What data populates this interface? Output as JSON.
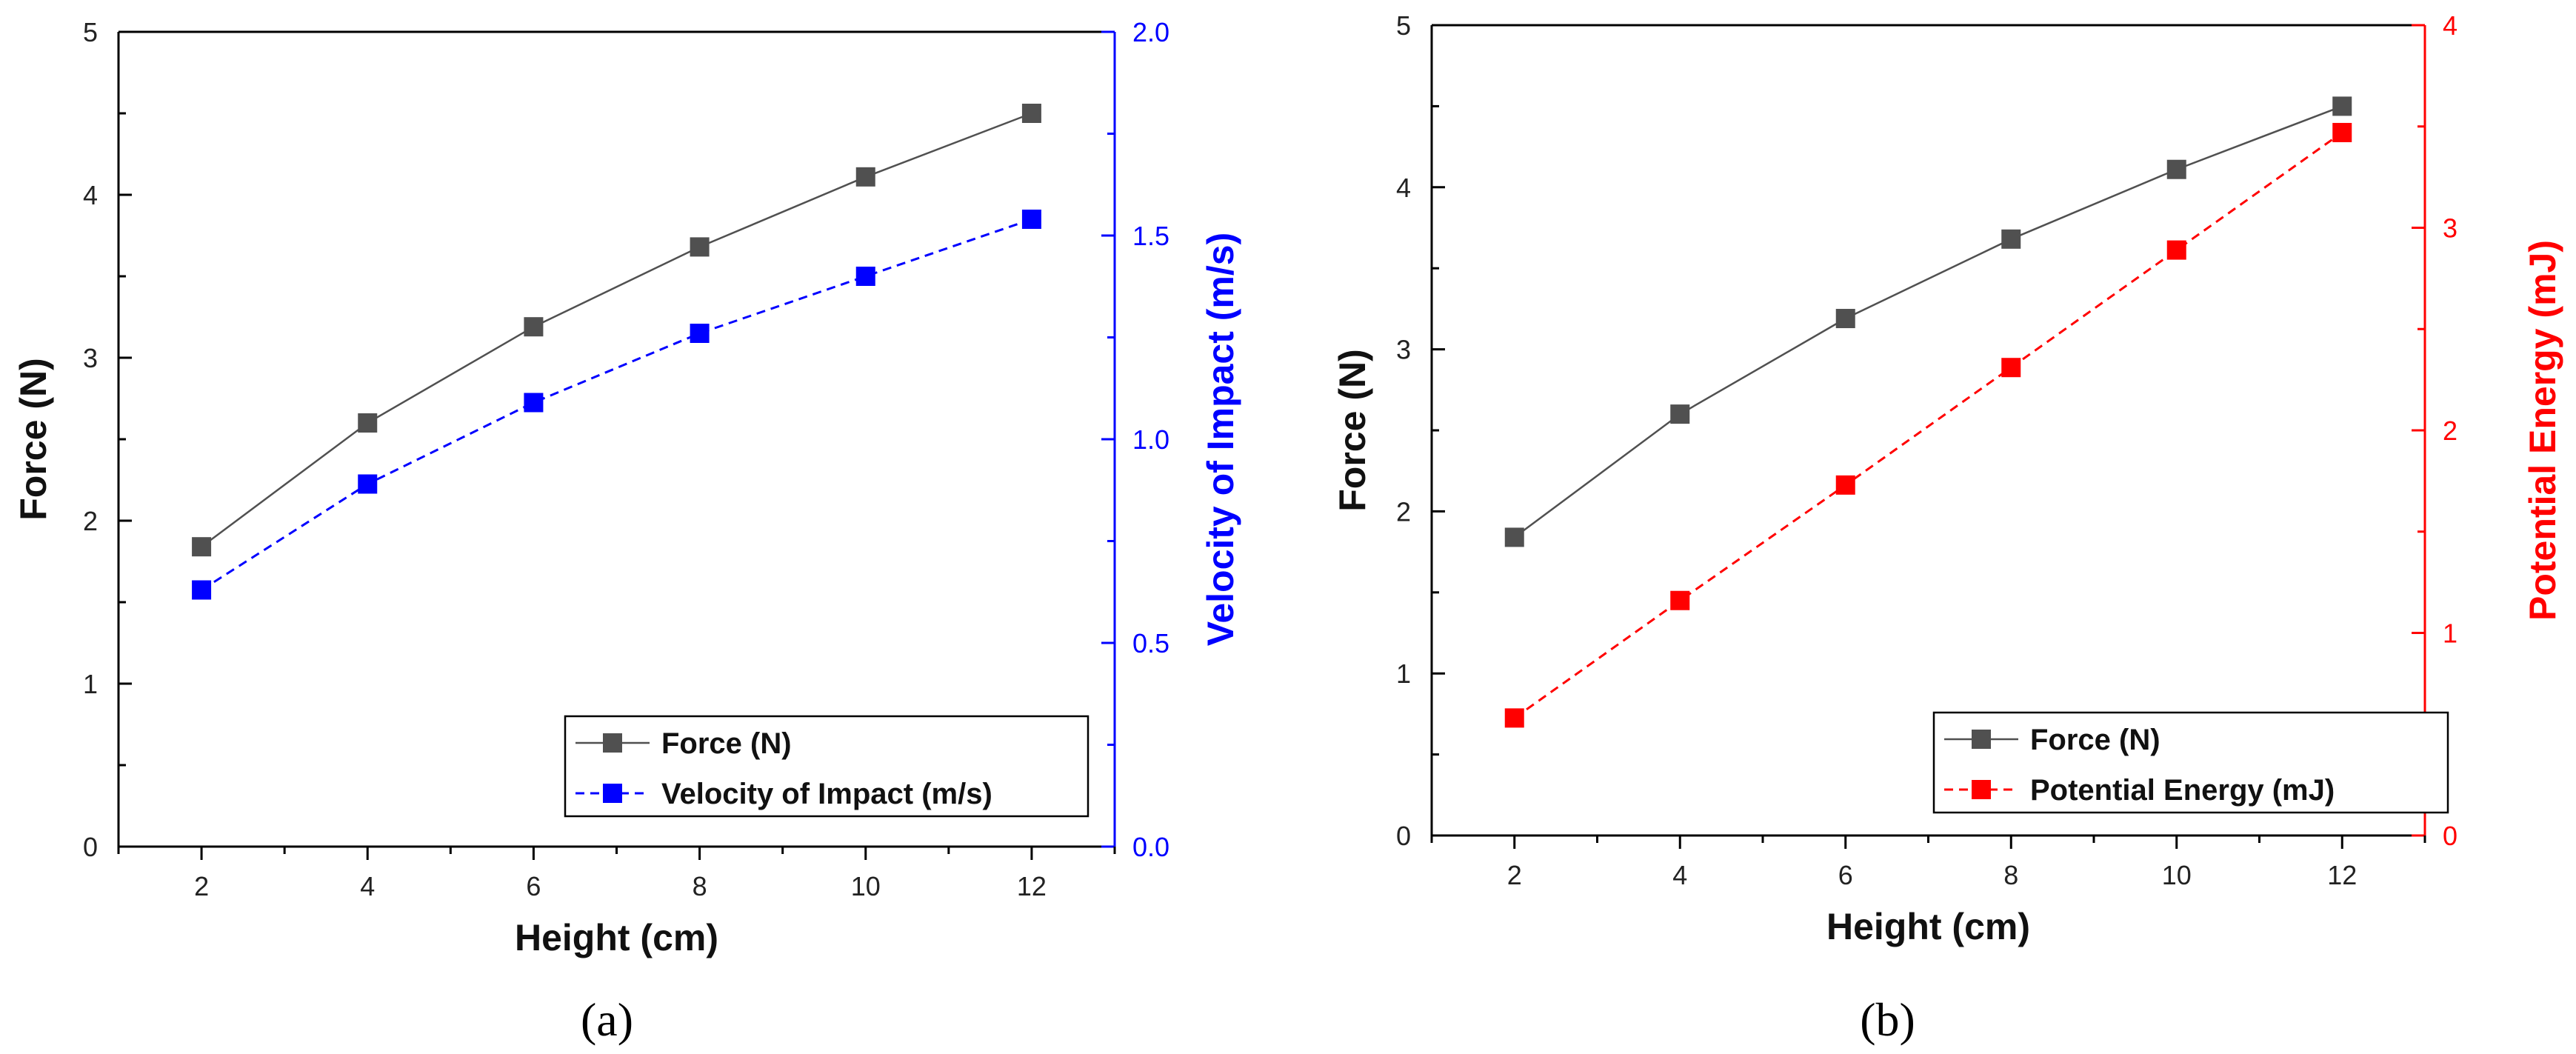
{
  "chart_data": [
    {
      "type": "line",
      "panel_label": "(a)",
      "xlabel": "Height (cm)",
      "ylabel": "Force (N)",
      "y2label": "Velocity of Impact (m/s)",
      "xlim": [
        1,
        13
      ],
      "ylim": [
        0,
        5
      ],
      "y2lim": [
        0,
        2
      ],
      "xticks": [
        2,
        4,
        6,
        8,
        10,
        12
      ],
      "yticks": [
        "0",
        "1",
        "2",
        "3",
        "4",
        "5"
      ],
      "y2ticks": [
        "0.0",
        "0.5",
        "1.0",
        "1.5",
        "2.0"
      ],
      "x": [
        2,
        4,
        6,
        8,
        10,
        12
      ],
      "legend_position": "bottom-right",
      "series": [
        {
          "name": "Force (N)",
          "axis": "left",
          "color": "#505050",
          "style": "solid",
          "values": [
            1.84,
            2.6,
            3.19,
            3.68,
            4.11,
            4.5
          ]
        },
        {
          "name": "Velocity of Impact (m/s)",
          "axis": "right",
          "color": "#0000ff",
          "style": "dashed",
          "values": [
            0.63,
            0.89,
            1.09,
            1.26,
            1.4,
            1.54
          ]
        }
      ],
      "y2_color": "#0000ff"
    },
    {
      "type": "line",
      "panel_label": "(b)",
      "xlabel": "Height (cm)",
      "ylabel": "Force (N)",
      "y2label": "Potential Energy (mJ)",
      "xlim": [
        1,
        13
      ],
      "ylim": [
        0,
        5
      ],
      "y2lim": [
        0,
        4
      ],
      "xticks": [
        2,
        4,
        6,
        8,
        10,
        12
      ],
      "yticks": [
        "0",
        "1",
        "2",
        "3",
        "4",
        "5"
      ],
      "y2ticks": [
        "0",
        "1",
        "2",
        "3",
        "4"
      ],
      "x": [
        2,
        4,
        6,
        8,
        10,
        12
      ],
      "legend_position": "bottom-right",
      "series": [
        {
          "name": "Force (N)",
          "axis": "left",
          "color": "#505050",
          "style": "solid",
          "values": [
            1.84,
            2.6,
            3.19,
            3.68,
            4.11,
            4.5
          ]
        },
        {
          "name": "Potential Energy (mJ)",
          "axis": "right",
          "color": "#ff0000",
          "style": "dashed",
          "values": [
            0.58,
            1.16,
            1.73,
            2.31,
            2.89,
            3.47
          ]
        }
      ],
      "y2_color": "#ff0000"
    }
  ]
}
